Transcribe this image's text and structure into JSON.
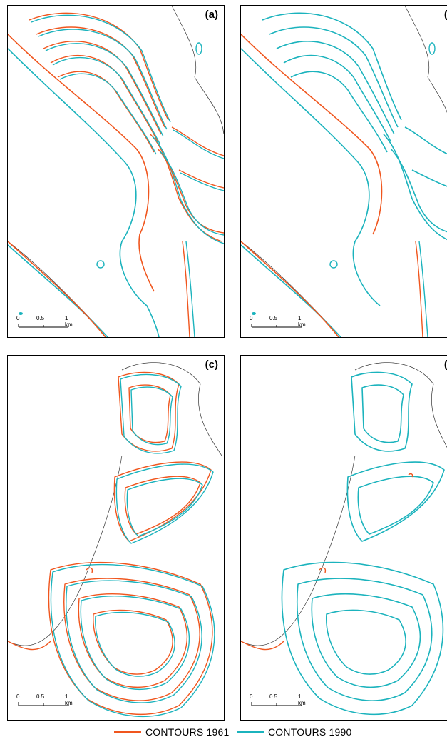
{
  "panels": [
    {
      "label": "(a)"
    },
    {
      "label": "(b"
    },
    {
      "label": "(c)"
    },
    {
      "label": "(d"
    }
  ],
  "scale": {
    "t0": "0",
    "t1": "0.5",
    "t2": "1 km"
  },
  "legend": [
    {
      "label": "CONTOURS 1961",
      "color": "#f0561e"
    },
    {
      "label": "CONTOURS 1990",
      "color": "#1bb3bd"
    }
  ],
  "colors": {
    "c1961": "#f0561e",
    "c1990": "#1bb3bd",
    "coast": "#333333"
  }
}
